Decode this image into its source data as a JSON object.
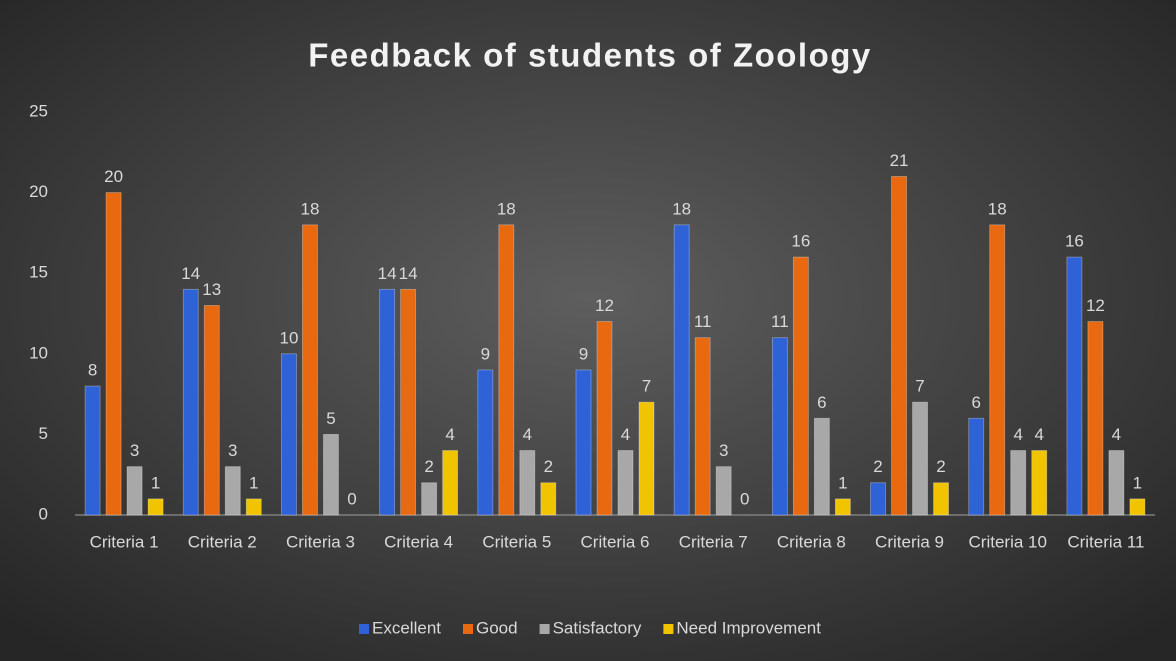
{
  "chart_data": {
    "type": "bar",
    "title": "Feedback of students of Zoology",
    "categories": [
      "Criteria 1",
      "Criteria 2",
      "Criteria 3",
      "Criteria 4",
      "Criteria 5",
      "Criteria 6",
      "Criteria 7",
      "Criteria 8",
      "Criteria 9",
      "Criteria 10",
      "Criteria 11"
    ],
    "series": [
      {
        "name": "Excellent",
        "color": "#2f62d6",
        "values": [
          8,
          14,
          10,
          14,
          9,
          9,
          18,
          11,
          2,
          6,
          16
        ]
      },
      {
        "name": "Good",
        "color": "#e8690f",
        "values": [
          20,
          13,
          18,
          14,
          18,
          12,
          11,
          16,
          21,
          18,
          12
        ]
      },
      {
        "name": "Satisfactory",
        "color": "#a8a8a8",
        "values": [
          3,
          3,
          5,
          2,
          4,
          4,
          3,
          6,
          7,
          4,
          4
        ]
      },
      {
        "name": "Need Improvement",
        "color": "#f0c400",
        "values": [
          1,
          1,
          0,
          4,
          2,
          7,
          0,
          1,
          2,
          4,
          1
        ]
      }
    ],
    "ylim": [
      0,
      25
    ],
    "yticks": [
      0,
      5,
      10,
      15,
      20,
      25
    ],
    "grid": false,
    "legend": "bottom"
  }
}
